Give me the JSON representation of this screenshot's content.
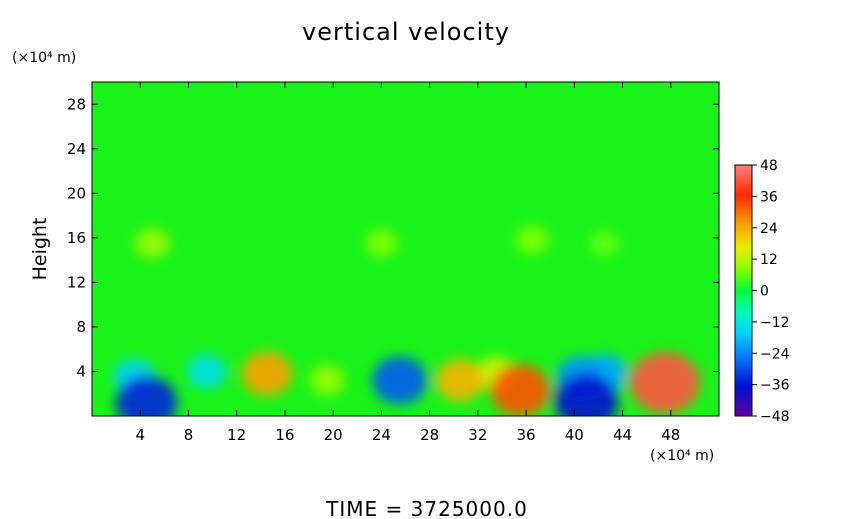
{
  "chart_data": {
    "type": "heatmap",
    "title": "vertical velocity",
    "ylabel": "Height",
    "x_unit": "(×10⁴ m)",
    "y_unit": "(×10⁴ m)",
    "footer": "TIME  =  3725000.0",
    "xlim": [
      0,
      52
    ],
    "ylim": [
      0,
      30
    ],
    "x_ticks": [
      4,
      8,
      12,
      16,
      20,
      24,
      28,
      32,
      36,
      40,
      44,
      48
    ],
    "y_ticks": [
      4,
      8,
      12,
      16,
      20,
      24,
      28
    ],
    "colorbar": {
      "ticks": [
        48,
        36,
        24,
        12,
        0,
        -12,
        -24,
        -36,
        -48
      ],
      "range": [
        -48,
        48
      ]
    },
    "features": [
      {
        "x": 14.5,
        "y": 3.8,
        "value": 24
      },
      {
        "x": 19.5,
        "y": 3.2,
        "value": 10
      },
      {
        "x": 30.5,
        "y": 3.2,
        "value": 22
      },
      {
        "x": 33.5,
        "y": 3.8,
        "value": 14
      },
      {
        "x": 35.5,
        "y": 2.3,
        "value": 32
      },
      {
        "x": 47.5,
        "y": 3.0,
        "value": 42
      },
      {
        "x": 25.5,
        "y": 3.2,
        "value": -28
      },
      {
        "x": 3.5,
        "y": 3.5,
        "value": -16
      },
      {
        "x": 4.5,
        "y": 1.2,
        "value": -34
      },
      {
        "x": 9.5,
        "y": 4.0,
        "value": -14
      },
      {
        "x": 40.5,
        "y": 3.5,
        "value": -22
      },
      {
        "x": 41.0,
        "y": 1.3,
        "value": -36
      },
      {
        "x": 42.5,
        "y": 3.8,
        "value": -20
      },
      {
        "x": 5.0,
        "y": 15.5,
        "value": 10
      },
      {
        "x": 24.0,
        "y": 15.5,
        "value": 8
      },
      {
        "x": 36.5,
        "y": 15.8,
        "value": 8
      },
      {
        "x": 42.5,
        "y": 15.5,
        "value": 6
      }
    ]
  }
}
